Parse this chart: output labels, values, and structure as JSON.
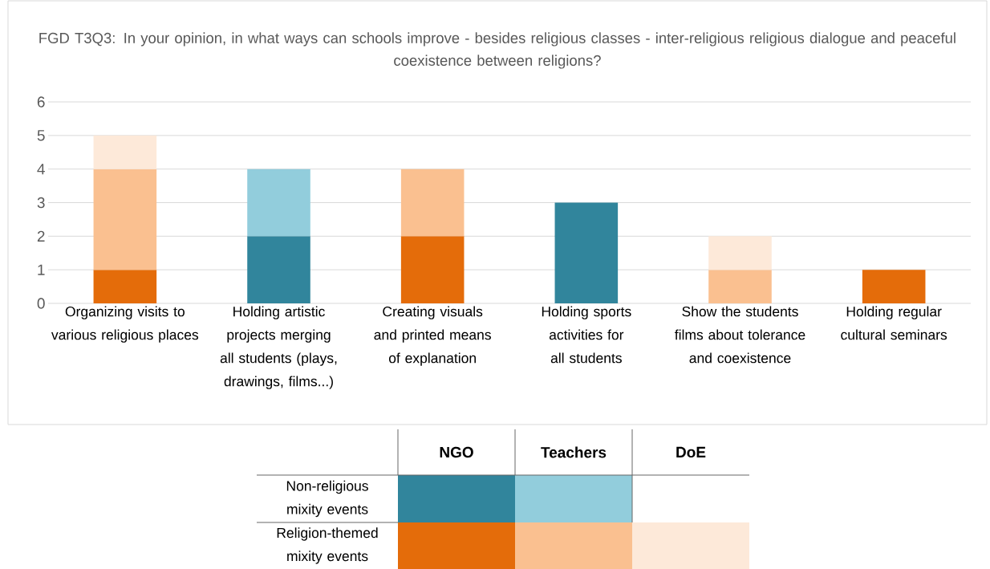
{
  "chart_data": {
    "type": "bar",
    "stacked": true,
    "title": "FGD T3Q3: In your opinion, in what ways can schools improve - besides religious classes - inter-religious religious dialogue and peaceful coexistence between religions?",
    "categories": [
      "Organizing visits to various religious places",
      "Holding artistic projects merging all students (plays, drawings, films...)",
      "Creating visuals and printed means of explanation",
      "Holding sports activities for all students",
      "Show the students films about tolerance and coexistence",
      "Holding regular cultural seminars"
    ],
    "series": [
      {
        "color": "#31859c",
        "values": [
          null,
          2,
          null,
          3,
          null,
          null
        ]
      },
      {
        "color": "#92cddc",
        "values": [
          null,
          2,
          null,
          null,
          null,
          null
        ]
      },
      {
        "color": "#e46c0a",
        "values": [
          1,
          null,
          2,
          null,
          null,
          1
        ]
      },
      {
        "color": "#fac090",
        "values": [
          3,
          null,
          2,
          null,
          1,
          null
        ]
      },
      {
        "color": "#fde9d9",
        "values": [
          1,
          null,
          null,
          null,
          1,
          null
        ]
      }
    ],
    "ylim": [
      0,
      6
    ],
    "yticks": [
      0,
      1,
      2,
      3,
      4,
      5,
      6
    ],
    "grid": "y",
    "annotations": [
      "NGO",
      "Teachers",
      "DoE",
      "Non-religious mixity events",
      "Religion-themed mixity events"
    ]
  }
}
